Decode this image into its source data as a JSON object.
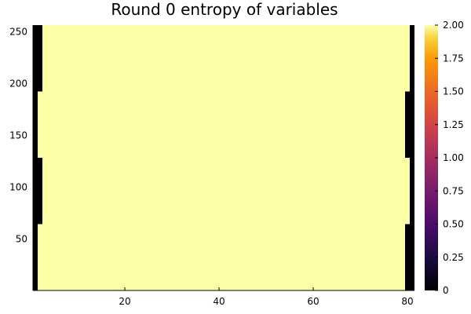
{
  "chart_data": {
    "type": "heatmap",
    "title": "Round 0 entropy of variables",
    "xlabel": "",
    "ylabel": "",
    "x_range": [
      0.5,
      81.5
    ],
    "y_range": [
      0.5,
      256.5
    ],
    "x_ticks": [
      20,
      40,
      60,
      80
    ],
    "y_ticks": [
      50,
      100,
      150,
      200,
      250
    ],
    "color_range": [
      0,
      2
    ],
    "colorbar_ticks": [
      "0",
      "0.25",
      "0.50",
      "0.75",
      "1.00",
      "1.25",
      "1.50",
      "1.75",
      "2.00"
    ],
    "colormap": "inferno",
    "default_value": 2.0,
    "zero_regions": [
      {
        "x": [
          1,
          1
        ],
        "y": [
          1,
          256
        ],
        "value": 0
      },
      {
        "x": [
          2,
          2
        ],
        "y": [
          65,
          128
        ],
        "value": 0
      },
      {
        "x": [
          2,
          2
        ],
        "y": [
          193,
          256
        ],
        "value": 0
      },
      {
        "x": [
          81,
          81
        ],
        "y": [
          1,
          256
        ],
        "value": 0
      },
      {
        "x": [
          80,
          80
        ],
        "y": [
          1,
          64
        ],
        "value": 0
      },
      {
        "x": [
          80,
          80
        ],
        "y": [
          129,
          192
        ],
        "value": 0
      }
    ],
    "fill_color": "#fbfea4",
    "zero_color": "#000004",
    "grid": false,
    "legend": "none"
  }
}
